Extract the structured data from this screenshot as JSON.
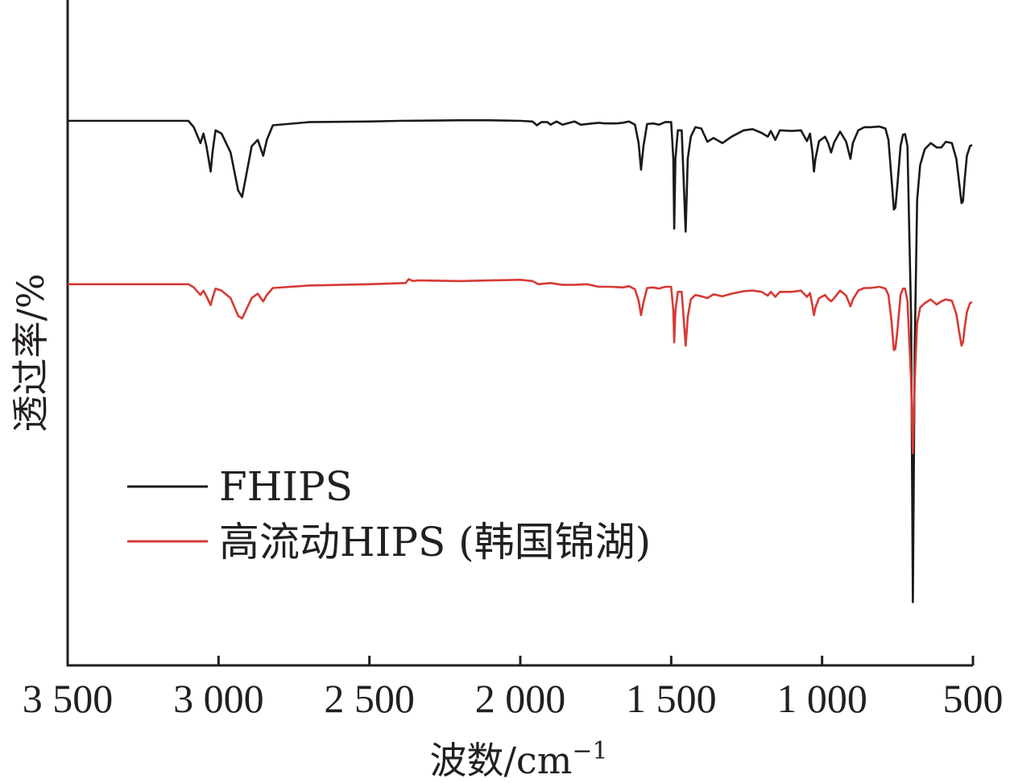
{
  "chart_data": {
    "type": "line",
    "title": "",
    "xlabel": "波数/cm",
    "xlabel_sup": "−1",
    "ylabel": "透过率/%",
    "xlim": [
      3500,
      500
    ],
    "x_reversed": true,
    "y_ticks_shown": false,
    "grid": false,
    "legend_position": "lower-left",
    "xticks": [
      {
        "value": 3500,
        "label": "3 500"
      },
      {
        "value": 3000,
        "label": "3 000"
      },
      {
        "value": 2500,
        "label": "2 500"
      },
      {
        "value": 2000,
        "label": "2 000"
      },
      {
        "value": 1500,
        "label": "1 500"
      },
      {
        "value": 1000,
        "label": "1 000"
      },
      {
        "value": 500,
        "label": "500"
      }
    ],
    "ylim": [
      0,
      100
    ],
    "series": [
      {
        "name": "FHIPS",
        "color": "#1a1a1a",
        "points": [
          [
            3500,
            86.0
          ],
          [
            3100,
            86.0
          ],
          [
            3082,
            85.0
          ],
          [
            3060,
            82.5
          ],
          [
            3050,
            84.0
          ],
          [
            3040,
            82.0
          ],
          [
            3026,
            78.0
          ],
          [
            3020,
            81.0
          ],
          [
            3010,
            84.5
          ],
          [
            2990,
            84.0
          ],
          [
            2960,
            81.0
          ],
          [
            2935,
            75.0
          ],
          [
            2922,
            74.0
          ],
          [
            2910,
            77.0
          ],
          [
            2890,
            82.0
          ],
          [
            2870,
            83.0
          ],
          [
            2852,
            80.5
          ],
          [
            2840,
            83.0
          ],
          [
            2820,
            85.3
          ],
          [
            2700,
            85.8
          ],
          [
            2500,
            85.9
          ],
          [
            2400,
            86.0
          ],
          [
            2200,
            86.1
          ],
          [
            2100,
            86.1
          ],
          [
            2000,
            86.0
          ],
          [
            1960,
            85.9
          ],
          [
            1945,
            85.3
          ],
          [
            1930,
            85.8
          ],
          [
            1910,
            85.8
          ],
          [
            1900,
            85.4
          ],
          [
            1880,
            85.9
          ],
          [
            1860,
            85.4
          ],
          [
            1820,
            85.9
          ],
          [
            1800,
            85.4
          ],
          [
            1760,
            85.6
          ],
          [
            1740,
            85.7
          ],
          [
            1720,
            85.6
          ],
          [
            1700,
            85.6
          ],
          [
            1680,
            85.6
          ],
          [
            1660,
            85.7
          ],
          [
            1640,
            85.9
          ],
          [
            1620,
            85.4
          ],
          [
            1608,
            82.5
          ],
          [
            1600,
            78.3
          ],
          [
            1592,
            82.0
          ],
          [
            1580,
            85.5
          ],
          [
            1560,
            85.6
          ],
          [
            1540,
            85.4
          ],
          [
            1520,
            85.8
          ],
          [
            1500,
            85.8
          ],
          [
            1493,
            80.0
          ],
          [
            1490,
            69.0
          ],
          [
            1486,
            80.0
          ],
          [
            1478,
            84.5
          ],
          [
            1465,
            84.5
          ],
          [
            1452,
            68.5
          ],
          [
            1445,
            80.0
          ],
          [
            1435,
            83.5
          ],
          [
            1420,
            85.0
          ],
          [
            1400,
            84.8
          ],
          [
            1380,
            82.7
          ],
          [
            1360,
            83.3
          ],
          [
            1330,
            82.5
          ],
          [
            1300,
            83.5
          ],
          [
            1260,
            84.5
          ],
          [
            1230,
            84.7
          ],
          [
            1200,
            84.1
          ],
          [
            1180,
            83.5
          ],
          [
            1170,
            84.4
          ],
          [
            1155,
            83.0
          ],
          [
            1140,
            84.5
          ],
          [
            1100,
            84.4
          ],
          [
            1070,
            84.5
          ],
          [
            1050,
            82.8
          ],
          [
            1040,
            84.0
          ],
          [
            1032,
            81.0
          ],
          [
            1027,
            78.0
          ],
          [
            1022,
            80.0
          ],
          [
            1010,
            82.8
          ],
          [
            990,
            83.5
          ],
          [
            980,
            82.5
          ],
          [
            970,
            81.0
          ],
          [
            960,
            82.6
          ],
          [
            940,
            84.3
          ],
          [
            920,
            82.7
          ],
          [
            906,
            80.0
          ],
          [
            898,
            82.5
          ],
          [
            880,
            84.5
          ],
          [
            860,
            85.0
          ],
          [
            840,
            85.0
          ],
          [
            810,
            85.1
          ],
          [
            790,
            84.8
          ],
          [
            780,
            83.0
          ],
          [
            770,
            77.0
          ],
          [
            762,
            72.0
          ],
          [
            757,
            72.3
          ],
          [
            750,
            76.0
          ],
          [
            740,
            82.0
          ],
          [
            732,
            83.8
          ],
          [
            725,
            83.9
          ],
          [
            717,
            82.0
          ],
          [
            705,
            55.0
          ],
          [
            699,
            10.0
          ],
          [
            693,
            50.0
          ],
          [
            685,
            73.5
          ],
          [
            675,
            79.0
          ],
          [
            660,
            81.5
          ],
          [
            640,
            82.5
          ],
          [
            620,
            81.8
          ],
          [
            605,
            81.8
          ],
          [
            590,
            82.7
          ],
          [
            570,
            82.5
          ],
          [
            555,
            80.0
          ],
          [
            545,
            76.0
          ],
          [
            538,
            73.0
          ],
          [
            533,
            73.3
          ],
          [
            527,
            77.0
          ],
          [
            520,
            80.5
          ],
          [
            510,
            82.0
          ],
          [
            503,
            82.2
          ]
        ]
      },
      {
        "name": "高流动HIPS (韩国锦湖)",
        "color": "#d63a35",
        "points": [
          [
            3500,
            60.2
          ],
          [
            3100,
            60.2
          ],
          [
            3082,
            59.7
          ],
          [
            3060,
            58.5
          ],
          [
            3050,
            59.2
          ],
          [
            3040,
            58.3
          ],
          [
            3026,
            56.9
          ],
          [
            3020,
            58.0
          ],
          [
            3010,
            59.5
          ],
          [
            2990,
            59.2
          ],
          [
            2960,
            58.0
          ],
          [
            2935,
            55.2
          ],
          [
            2922,
            54.8
          ],
          [
            2910,
            56.0
          ],
          [
            2890,
            58.0
          ],
          [
            2870,
            58.7
          ],
          [
            2852,
            57.5
          ],
          [
            2840,
            58.5
          ],
          [
            2820,
            59.6
          ],
          [
            2700,
            60.0
          ],
          [
            2500,
            60.2
          ],
          [
            2380,
            60.4
          ],
          [
            2370,
            61.0
          ],
          [
            2355,
            60.7
          ],
          [
            2340,
            60.8
          ],
          [
            2200,
            60.7
          ],
          [
            2100,
            60.8
          ],
          [
            2000,
            60.9
          ],
          [
            1960,
            60.7
          ],
          [
            1940,
            60.2
          ],
          [
            1900,
            60.4
          ],
          [
            1860,
            60.1
          ],
          [
            1820,
            60.1
          ],
          [
            1780,
            60.2
          ],
          [
            1740,
            59.8
          ],
          [
            1700,
            59.8
          ],
          [
            1660,
            59.7
          ],
          [
            1640,
            59.9
          ],
          [
            1620,
            59.4
          ],
          [
            1608,
            57.6
          ],
          [
            1600,
            55.3
          ],
          [
            1592,
            57.3
          ],
          [
            1580,
            59.6
          ],
          [
            1560,
            59.7
          ],
          [
            1540,
            59.5
          ],
          [
            1520,
            59.8
          ],
          [
            1500,
            59.8
          ],
          [
            1493,
            56.0
          ],
          [
            1490,
            51.0
          ],
          [
            1486,
            56.0
          ],
          [
            1478,
            59.0
          ],
          [
            1465,
            59.0
          ],
          [
            1452,
            50.5
          ],
          [
            1445,
            55.0
          ],
          [
            1435,
            57.8
          ],
          [
            1420,
            58.5
          ],
          [
            1400,
            58.3
          ],
          [
            1380,
            58.0
          ],
          [
            1360,
            58.6
          ],
          [
            1330,
            58.3
          ],
          [
            1300,
            58.7
          ],
          [
            1260,
            59.1
          ],
          [
            1230,
            59.2
          ],
          [
            1200,
            59.0
          ],
          [
            1180,
            58.4
          ],
          [
            1170,
            59.0
          ],
          [
            1155,
            58.2
          ],
          [
            1140,
            59.0
          ],
          [
            1100,
            59.0
          ],
          [
            1070,
            59.2
          ],
          [
            1050,
            58.2
          ],
          [
            1040,
            58.8
          ],
          [
            1032,
            56.8
          ],
          [
            1027,
            55.3
          ],
          [
            1022,
            56.5
          ],
          [
            1010,
            58.0
          ],
          [
            990,
            58.5
          ],
          [
            980,
            57.9
          ],
          [
            970,
            57.5
          ],
          [
            960,
            58.0
          ],
          [
            940,
            59.2
          ],
          [
            920,
            58.4
          ],
          [
            906,
            56.7
          ],
          [
            898,
            57.8
          ],
          [
            880,
            59.2
          ],
          [
            860,
            59.6
          ],
          [
            840,
            59.6
          ],
          [
            810,
            59.8
          ],
          [
            790,
            59.5
          ],
          [
            780,
            58.5
          ],
          [
            770,
            54.5
          ],
          [
            762,
            49.8
          ],
          [
            757,
            50.0
          ],
          [
            750,
            53.0
          ],
          [
            740,
            58.5
          ],
          [
            732,
            59.5
          ],
          [
            725,
            59.5
          ],
          [
            717,
            57.5
          ],
          [
            705,
            45.0
          ],
          [
            699,
            33.5
          ],
          [
            693,
            45.0
          ],
          [
            685,
            54.0
          ],
          [
            675,
            56.5
          ],
          [
            660,
            57.2
          ],
          [
            640,
            57.8
          ],
          [
            620,
            57.0
          ],
          [
            605,
            57.5
          ],
          [
            590,
            57.8
          ],
          [
            570,
            57.6
          ],
          [
            555,
            55.5
          ],
          [
            545,
            52.5
          ],
          [
            538,
            50.5
          ],
          [
            533,
            51.0
          ],
          [
            527,
            53.5
          ],
          [
            520,
            55.8
          ],
          [
            510,
            57.2
          ],
          [
            503,
            57.4
          ]
        ]
      }
    ]
  },
  "legend": {
    "entries": [
      {
        "label": "FHIPS",
        "color": "#1a1a1a"
      },
      {
        "label": "高流动HIPS (韩国锦湖)",
        "color": "#d63a35"
      }
    ]
  },
  "colors": {
    "axis": "#231f20"
  }
}
